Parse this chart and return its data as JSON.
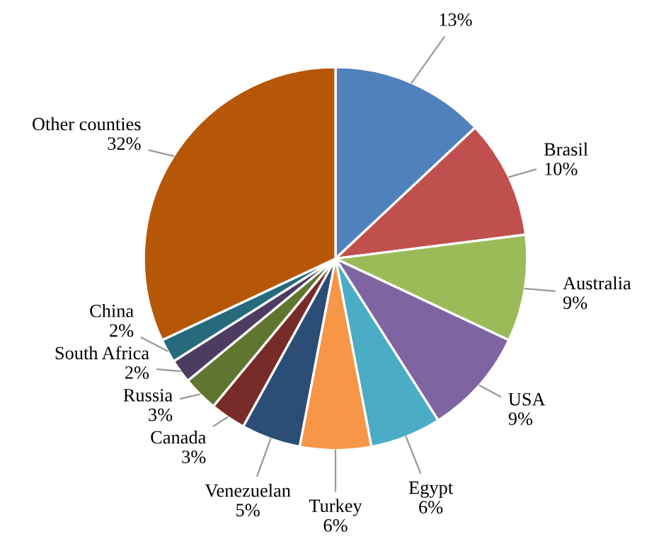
{
  "chart_data": {
    "type": "pie",
    "categories": [
      null,
      "Brasil",
      "Australia",
      "USA",
      "Egypt",
      "Turkey",
      "Venezuelan",
      "Canada",
      "Russia",
      "South Africa",
      "China",
      "Other counties"
    ],
    "values": [
      13,
      10,
      9,
      9,
      6,
      6,
      5,
      3,
      3,
      2,
      2,
      32
    ],
    "value_labels": [
      "13%",
      "10%",
      "9%",
      "9%",
      "6%",
      "6%",
      "5%",
      "3%",
      "3%",
      "2%",
      "2%",
      "32%"
    ],
    "colors": [
      "#4f81bd",
      "#c0504d",
      "#9bbb59",
      "#8064a2",
      "#4bacc6",
      "#f79646",
      "#2c4d75",
      "#772c2a",
      "#5f7530",
      "#4d3b62",
      "#276a7c",
      "#b65708"
    ],
    "legend": false
  }
}
